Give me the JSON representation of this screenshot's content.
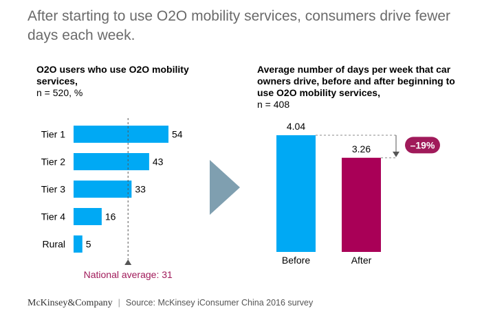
{
  "headline": "After starting to use O2O mobility services, consumers drive fewer days each week.",
  "footer": {
    "logo": "McKinsey&Company",
    "separator": "|",
    "source": "Source: McKinsey iConsumer China 2016 survey"
  },
  "chart_data": [
    {
      "type": "bar",
      "orientation": "horizontal",
      "title": "O2O users who use O2O mobility services,",
      "subtitle": "n = 520, %",
      "categories": [
        "Tier 1",
        "Tier 2",
        "Tier 3",
        "Tier 4",
        "Rural"
      ],
      "values": [
        54,
        43,
        33,
        16,
        5
      ],
      "reference_line": {
        "value": 31,
        "label": "National average: 31"
      },
      "color": "#00a9f4",
      "reference_color": "#a01a5a"
    },
    {
      "type": "bar",
      "orientation": "vertical",
      "title": "Average number of days per week that car owners drive, before and after beginning to use O2O mobility services,",
      "subtitle": "n = 408",
      "categories": [
        "Before",
        "After"
      ],
      "values": [
        4.04,
        3.26
      ],
      "value_labels": [
        "4.04",
        "3.26"
      ],
      "colors": [
        "#00a9f4",
        "#a90057"
      ],
      "change_label": "–19%",
      "change_color": "#a01a5a"
    }
  ],
  "colors": {
    "arrow": "#7f9fb0",
    "axis_dashed": "#555555"
  }
}
